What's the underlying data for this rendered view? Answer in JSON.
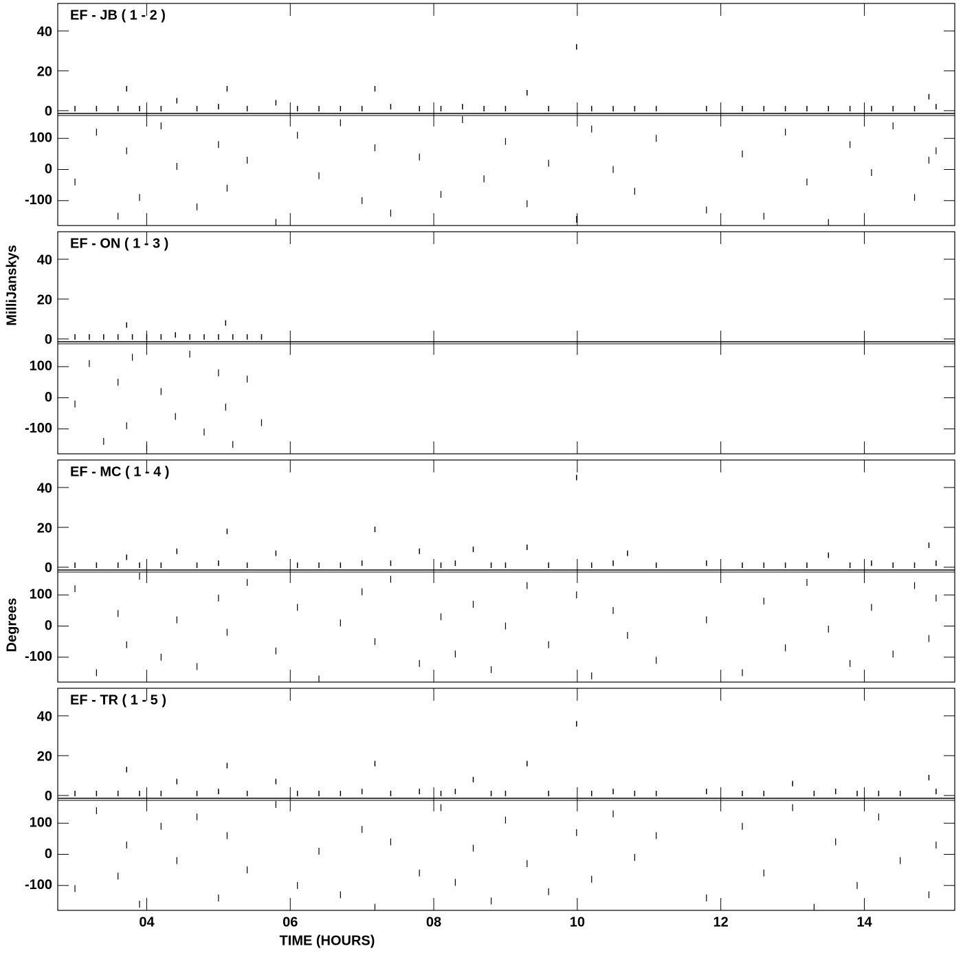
{
  "chart_data": {
    "type": "scatter",
    "x_label": "TIME (HOURS)",
    "y_label_amplitude": "MilliJanskys",
    "y_label_phase": "Degrees",
    "xlim": [
      2.76,
      15.26
    ],
    "xticks": [
      {
        "value": 4,
        "label": "04"
      },
      {
        "value": 6,
        "label": "06"
      },
      {
        "value": 8,
        "label": "08"
      },
      {
        "value": 10,
        "label": "10"
      },
      {
        "value": 12,
        "label": "12"
      },
      {
        "value": 14,
        "label": "14"
      }
    ],
    "amplitude_ylim": [
      -1.4,
      53.8
    ],
    "amplitude_yticks": [
      0,
      20,
      40
    ],
    "phase_ylim": [
      -180,
      180
    ],
    "phase_yticks": [
      -100,
      0,
      100
    ],
    "color": "#000000",
    "panels": [
      {
        "title": "EF - JB ( 1 - 2 )",
        "x": [
          3.0,
          3.3,
          3.6,
          3.72,
          3.9,
          4.2,
          4.42,
          4.7,
          5.0,
          5.12,
          5.4,
          5.8,
          6.1,
          6.4,
          6.7,
          7.0,
          7.18,
          7.4,
          7.8,
          8.1,
          8.4,
          8.7,
          9.0,
          9.3,
          9.6,
          9.99,
          10.2,
          10.5,
          10.8,
          11.1,
          11.8,
          12.3,
          12.6,
          12.9,
          13.2,
          13.5,
          13.8,
          14.1,
          14.4,
          14.7,
          14.9,
          15.0
        ],
        "amplitude": [
          1,
          1,
          1,
          11,
          1,
          1,
          5,
          1,
          2,
          11,
          1,
          4,
          1,
          1,
          1,
          1,
          11,
          2,
          1,
          1,
          2,
          1,
          1,
          9,
          1,
          32,
          1,
          1,
          1,
          1,
          1,
          1,
          1,
          1,
          1,
          1,
          1,
          1,
          1,
          1,
          7,
          2
        ],
        "phase": [
          -40,
          120,
          -150,
          60,
          -90,
          140,
          10,
          -120,
          80,
          -60,
          30,
          -170,
          110,
          -20,
          150,
          -100,
          70,
          -140,
          40,
          -80,
          160,
          -30,
          90,
          -110,
          20,
          -160,
          130,
          0,
          -70,
          100,
          -130,
          50,
          -150,
          120,
          -40,
          -170,
          80,
          -10,
          140,
          -90,
          30,
          60
        ]
      },
      {
        "title": "EF - ON ( 1 - 3 )",
        "x": [
          3.0,
          3.2,
          3.4,
          3.6,
          3.72,
          3.8,
          4.0,
          4.2,
          4.4,
          4.6,
          4.8,
          5.0,
          5.1,
          5.2,
          5.4,
          5.6
        ],
        "amplitude": [
          1,
          1,
          1,
          1,
          7,
          1,
          1,
          1,
          2,
          1,
          1,
          1,
          8,
          1,
          1,
          1
        ],
        "phase": [
          -20,
          110,
          -140,
          50,
          -90,
          130,
          -160,
          20,
          -60,
          140,
          -110,
          80,
          -30,
          -150,
          60,
          -80
        ]
      },
      {
        "title": "EF - MC ( 1 - 4 )",
        "x": [
          3.0,
          3.3,
          3.6,
          3.72,
          3.9,
          4.2,
          4.42,
          4.7,
          5.0,
          5.12,
          5.4,
          5.8,
          6.1,
          6.4,
          6.7,
          7.0,
          7.18,
          7.4,
          7.8,
          8.1,
          8.3,
          8.55,
          8.8,
          9.0,
          9.3,
          9.6,
          9.99,
          10.2,
          10.5,
          10.7,
          11.1,
          11.8,
          12.3,
          12.6,
          12.9,
          13.2,
          13.5,
          13.8,
          14.1,
          14.4,
          14.7,
          14.9,
          15.0
        ],
        "amplitude": [
          1,
          1,
          1,
          5,
          1,
          1,
          8,
          1,
          2,
          18,
          1,
          7,
          1,
          1,
          1,
          2,
          19,
          2,
          8,
          1,
          2,
          9,
          1,
          1,
          10,
          1,
          45,
          1,
          2,
          7,
          1,
          2,
          1,
          1,
          1,
          1,
          6,
          1,
          2,
          1,
          1,
          11,
          2
        ],
        "phase": [
          120,
          -150,
          40,
          -60,
          160,
          -100,
          20,
          -130,
          90,
          -20,
          140,
          -80,
          60,
          -170,
          10,
          110,
          -50,
          150,
          -120,
          30,
          -90,
          70,
          -140,
          0,
          130,
          -60,
          100,
          -160,
          50,
          -30,
          -110,
          20,
          -150,
          80,
          -70,
          140,
          -10,
          -120,
          60,
          -90,
          130,
          -40,
          90
        ]
      },
      {
        "title": "EF - TR ( 1 - 5 )",
        "x": [
          3.0,
          3.3,
          3.6,
          3.72,
          3.9,
          4.2,
          4.42,
          4.7,
          5.0,
          5.12,
          5.4,
          5.8,
          6.1,
          6.4,
          6.7,
          7.0,
          7.18,
          7.4,
          7.8,
          8.1,
          8.3,
          8.55,
          8.8,
          9.0,
          9.3,
          9.6,
          9.99,
          10.2,
          10.5,
          10.8,
          11.1,
          11.8,
          12.3,
          12.6,
          13.0,
          13.3,
          13.6,
          13.9,
          14.2,
          14.5,
          14.9,
          15.0
        ],
        "amplitude": [
          1,
          1,
          1,
          13,
          1,
          1,
          7,
          1,
          2,
          15,
          1,
          7,
          1,
          1,
          1,
          2,
          16,
          1,
          2,
          1,
          2,
          8,
          1,
          1,
          16,
          1,
          36,
          1,
          2,
          1,
          1,
          2,
          1,
          1,
          6,
          1,
          2,
          1,
          1,
          1,
          9,
          2
        ],
        "phase": [
          -110,
          140,
          -70,
          30,
          -160,
          90,
          -20,
          120,
          -140,
          60,
          -50,
          160,
          -100,
          10,
          -130,
          80,
          -170,
          40,
          -60,
          150,
          -90,
          20,
          -150,
          110,
          -30,
          -120,
          70,
          -80,
          130,
          -10,
          60,
          -140,
          90,
          -60,
          150,
          -170,
          40,
          -100,
          120,
          -20,
          -130,
          30
        ]
      }
    ]
  }
}
